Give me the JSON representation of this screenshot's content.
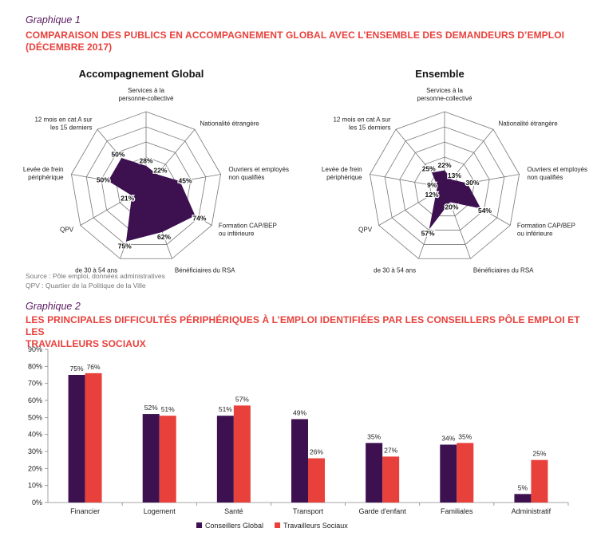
{
  "graph1": {
    "caption": "Graphique 1",
    "title_line1": "COMPARAISON DES PUBLICS EN ACCOMPAGNEMENT GLOBAL AVEC L’ENSEMBLE DES DEMANDEURS D’EMPLOI",
    "title_line2": "(DÉCEMBRE 2017)",
    "source": "Source : Pôle emploi, données administratives",
    "note": "QPV : Quartier de la Politique de la Ville"
  },
  "graph2": {
    "caption": "Graphique 2",
    "title_line1": "LES PRINCIPALES DIFFICULTÉS PÉRIPHÉRIQUES À L’EMPLOI IDENTIFIÉES PAR LES CONSEILLERS PÔLE EMPLOI ET LES",
    "title_line2": "TRAVAILLEURS SOCIAUX"
  },
  "colors": {
    "dark": "#3d1150",
    "red": "#e8413c",
    "grid": "#777777"
  },
  "chart_data": [
    {
      "type": "radar",
      "title": "Accompagnement Global",
      "axes": [
        [
          "Services à la",
          "personne-collectivé"
        ],
        [
          "Nationalité étrangère"
        ],
        [
          "Ouvriers et employés",
          "non qualifiés"
        ],
        [
          "Formation CAP/BEP",
          "ou inférieure"
        ],
        [
          "Bénéficiaires du RSA"
        ],
        [
          "de 30 à 54 ans"
        ],
        [
          "QPV"
        ],
        [
          "Levée de frein",
          "périphérique"
        ],
        [
          "12 mois en cat A sur",
          "les 15 derniers"
        ]
      ],
      "values": [
        28,
        22,
        45,
        74,
        62,
        75,
        21,
        50,
        50
      ],
      "value_labels": [
        "28%",
        "22%",
        "45%",
        "74%",
        "62%",
        "75%",
        "21%",
        "50%",
        "50%"
      ],
      "rmax": 100,
      "rings": 5
    },
    {
      "type": "radar",
      "title": "Ensemble",
      "axes": [
        [
          "Services à la",
          "personne-collectivé"
        ],
        [
          "Nationalité étrangère"
        ],
        [
          "Ouvriers et employés",
          "non qualifiés"
        ],
        [
          "Formation CAP/BEP",
          "ou inférieure"
        ],
        [
          "Bénéficiaires du RSA"
        ],
        [
          "de 30 à 54 ans"
        ],
        [
          "QPV"
        ],
        [
          "Levée de frein",
          "périphérique"
        ],
        [
          "12 mois en cat A sur",
          "les 15 derniers"
        ]
      ],
      "values": [
        22,
        13,
        30,
        54,
        20,
        57,
        12,
        9,
        25
      ],
      "value_labels": [
        "22%",
        "13%",
        "30%",
        "54%",
        "20%",
        "57%",
        "12%",
        "9%",
        "25%"
      ],
      "rmax": 100,
      "rings": 5
    },
    {
      "type": "bar",
      "categories": [
        "Financier",
        "Logement",
        "Santé",
        "Transport",
        "Garde d'enfant",
        "Familiales",
        "Administratif"
      ],
      "series": [
        {
          "name": "Conseillers Global",
          "values": [
            75,
            52,
            51,
            49,
            35,
            34,
            5
          ],
          "labels": [
            "75%",
            "52%",
            "51%",
            "49%",
            "35%",
            "34%",
            "5%"
          ]
        },
        {
          "name": "Travailleurs Sociaux",
          "values": [
            76,
            51,
            57,
            26,
            27,
            35,
            25
          ],
          "labels": [
            "76%",
            "51%",
            "57%",
            "26%",
            "27%",
            "35%",
            "25%"
          ]
        }
      ],
      "ylim": [
        0,
        90
      ],
      "yticks": [
        "0%",
        "10%",
        "20%",
        "30%",
        "40%",
        "50%",
        "60%",
        "70%",
        "80%",
        "90%"
      ],
      "legend": "bottom"
    }
  ]
}
